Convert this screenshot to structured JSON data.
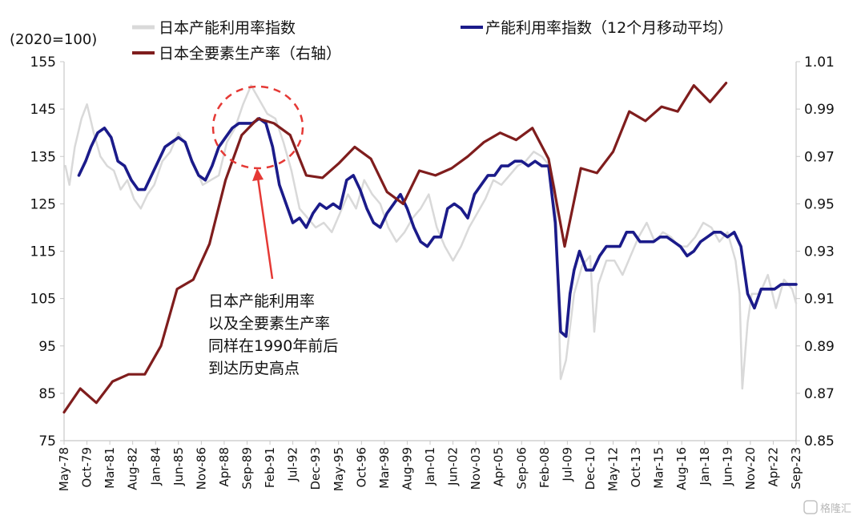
{
  "chart_data": {
    "type": "line",
    "unit_label": "(2020=100)",
    "y_left": {
      "ylim": [
        75,
        155
      ],
      "ticks": [
        75,
        85,
        95,
        105,
        115,
        125,
        135,
        145,
        155
      ]
    },
    "y_right": {
      "ylim": [
        0.85,
        1.01
      ],
      "ticks": [
        "0.85",
        "0.87",
        "0.89",
        "0.91",
        "0.93",
        "0.95",
        "0.97",
        "0.99",
        "1.01"
      ]
    },
    "x_axis": {
      "start": "1978-05",
      "end": "2023-09",
      "tick_labels": [
        "May-78",
        "Oct-79",
        "Mar-81",
        "Aug-82",
        "Jan-84",
        "Jun-85",
        "Nov-86",
        "Apr-88",
        "Sep-89",
        "Feb-91",
        "Jul-92",
        "Dec-93",
        "May-95",
        "Oct-96",
        "Mar-98",
        "Aug-99",
        "Jan-01",
        "Jun-02",
        "Nov-03",
        "Apr-05",
        "Sep-06",
        "Feb-08",
        "Jul-09",
        "Dec-10",
        "May-12",
        "Oct-13",
        "Mar-15",
        "Aug-16",
        "Jan-18",
        "Jun-19",
        "Nov-20",
        "Apr-22",
        "Sep-23"
      ]
    },
    "legend": [
      {
        "label": "日本产能利用率指数",
        "color": "#d9d9d9"
      },
      {
        "label": "产能利用率指数（12个月移动平均）",
        "color": "#1b1b8a"
      },
      {
        "label": "日本全要素生产率（右轴）",
        "color": "#7f1d1d"
      }
    ],
    "series": [
      {
        "name": "日本产能利用率指数",
        "axis": "left",
        "color": "#d9d9d9",
        "x": [
          "1978-06",
          "1978-09",
          "1979-01",
          "1979-06",
          "1979-10",
          "1980-03",
          "1980-08",
          "1981-01",
          "1981-06",
          "1981-11",
          "1982-04",
          "1982-09",
          "1983-02",
          "1983-07",
          "1983-12",
          "1984-06",
          "1984-12",
          "1985-06",
          "1985-12",
          "1986-06",
          "1986-12",
          "1987-06",
          "1987-12",
          "1988-06",
          "1988-12",
          "1989-06",
          "1989-12",
          "1990-06",
          "1990-12",
          "1991-06",
          "1991-12",
          "1992-06",
          "1992-12",
          "1993-06",
          "1993-12",
          "1994-06",
          "1994-12",
          "1995-06",
          "1995-12",
          "1996-06",
          "1996-12",
          "1997-06",
          "1997-12",
          "1998-06",
          "1998-12",
          "1999-06",
          "1999-12",
          "2000-06",
          "2000-12",
          "2001-06",
          "2001-12",
          "2002-06",
          "2002-12",
          "2003-06",
          "2003-12",
          "2004-06",
          "2004-12",
          "2005-06",
          "2005-12",
          "2006-06",
          "2006-12",
          "2007-06",
          "2007-12",
          "2008-06",
          "2008-10",
          "2009-02",
          "2009-06",
          "2009-12",
          "2010-06",
          "2010-12",
          "2011-03",
          "2011-06",
          "2011-12",
          "2012-06",
          "2012-12",
          "2013-06",
          "2013-12",
          "2014-06",
          "2014-12",
          "2015-06",
          "2015-12",
          "2016-06",
          "2016-12",
          "2017-06",
          "2017-12",
          "2018-06",
          "2018-12",
          "2019-06",
          "2019-12",
          "2020-03",
          "2020-05",
          "2020-09",
          "2020-12",
          "2021-06",
          "2021-12",
          "2022-06",
          "2022-12",
          "2023-06",
          "2023-09"
        ],
        "values": [
          133,
          129,
          137,
          143,
          146,
          140,
          135,
          133,
          132,
          128,
          130,
          126,
          124,
          127,
          129,
          134,
          136,
          140,
          137,
          133,
          129,
          130,
          131,
          138,
          141,
          146,
          150,
          147,
          144,
          143,
          138,
          132,
          124,
          122,
          120,
          121,
          119,
          123,
          127,
          124,
          130,
          127,
          125,
          120,
          117,
          119,
          122,
          124,
          127,
          120,
          116,
          113,
          116,
          120,
          123,
          126,
          130,
          129,
          131,
          133,
          134,
          136,
          135,
          133,
          128,
          88,
          92,
          106,
          112,
          114,
          98,
          108,
          113,
          113,
          110,
          114,
          118,
          121,
          117,
          119,
          118,
          116,
          116,
          118,
          121,
          120,
          117,
          119,
          113,
          106,
          86,
          100,
          106,
          106,
          110,
          103,
          109,
          107,
          104
        ]
      },
      {
        "name": "产能利用率指数（12个月移动平均）",
        "axis": "left",
        "color": "#1b1b8a",
        "x": [
          "1979-04",
          "1979-09",
          "1980-01",
          "1980-06",
          "1980-11",
          "1981-04",
          "1981-09",
          "1982-02",
          "1982-07",
          "1982-12",
          "1983-05",
          "1983-10",
          "1984-03",
          "1984-08",
          "1985-01",
          "1985-06",
          "1985-11",
          "1986-04",
          "1986-09",
          "1987-02",
          "1987-07",
          "1987-12",
          "1988-05",
          "1988-10",
          "1989-03",
          "1989-08",
          "1990-01",
          "1990-06",
          "1990-11",
          "1991-04",
          "1991-09",
          "1992-02",
          "1992-07",
          "1992-12",
          "1993-05",
          "1993-10",
          "1994-03",
          "1994-08",
          "1995-01",
          "1995-06",
          "1995-11",
          "1996-04",
          "1996-09",
          "1997-02",
          "1997-07",
          "1997-12",
          "1998-05",
          "1998-10",
          "1999-03",
          "1999-08",
          "2000-01",
          "2000-06",
          "2000-11",
          "2001-04",
          "2001-09",
          "2002-02",
          "2002-07",
          "2002-12",
          "2003-05",
          "2003-10",
          "2004-03",
          "2004-08",
          "2005-01",
          "2005-06",
          "2005-11",
          "2006-04",
          "2006-09",
          "2007-02",
          "2007-07",
          "2007-12",
          "2008-05",
          "2008-10",
          "2009-02",
          "2009-06",
          "2009-09",
          "2009-12",
          "2010-04",
          "2010-09",
          "2011-02",
          "2011-07",
          "2011-12",
          "2012-05",
          "2012-10",
          "2013-03",
          "2013-08",
          "2014-01",
          "2014-06",
          "2014-11",
          "2015-04",
          "2015-09",
          "2016-02",
          "2016-07",
          "2016-12",
          "2017-05",
          "2017-10",
          "2018-03",
          "2018-08",
          "2019-01",
          "2019-06",
          "2019-11",
          "2020-04",
          "2020-09",
          "2021-02",
          "2021-07",
          "2021-12",
          "2022-05",
          "2022-10",
          "2023-03",
          "2023-09"
        ],
        "values": [
          131,
          134,
          137,
          140,
          141,
          139,
          134,
          133,
          130,
          128,
          128,
          131,
          134,
          137,
          138,
          139,
          138,
          134,
          131,
          130,
          133,
          137,
          139,
          141,
          142,
          142,
          142,
          143,
          142,
          137,
          129,
          125,
          121,
          122,
          120,
          123,
          125,
          124,
          125,
          124,
          130,
          131,
          128,
          124,
          121,
          120,
          123,
          125,
          127,
          124,
          120,
          117,
          116,
          118,
          118,
          124,
          125,
          124,
          122,
          127,
          129,
          131,
          131,
          133,
          133,
          134,
          134,
          133,
          134,
          133,
          133,
          121,
          98,
          97,
          106,
          111,
          115,
          111,
          111,
          114,
          116,
          116,
          116,
          119,
          119,
          117,
          117,
          117,
          118,
          118,
          117,
          116,
          114,
          115,
          117,
          118,
          119,
          119,
          118,
          119,
          116,
          106,
          103,
          107,
          107,
          107,
          108,
          108,
          108
        ]
      },
      {
        "name": "日本全要素生产率（右轴）",
        "axis": "right",
        "color": "#7f1d1d",
        "x": [
          "1978-05",
          "1979-05",
          "1980-05",
          "1981-05",
          "1982-05",
          "1983-05",
          "1984-05",
          "1985-05",
          "1986-05",
          "1987-05",
          "1988-05",
          "1989-05",
          "1990-05",
          "1991-05",
          "1992-05",
          "1993-05",
          "1994-05",
          "1995-05",
          "1996-05",
          "1997-05",
          "1998-05",
          "1999-05",
          "2000-05",
          "2001-05",
          "2002-05",
          "2003-05",
          "2004-05",
          "2005-05",
          "2006-05",
          "2007-05",
          "2008-05",
          "2009-05",
          "2010-05",
          "2011-05",
          "2012-05",
          "2013-05",
          "2014-05",
          "2015-05",
          "2016-05",
          "2017-05",
          "2018-05",
          "2019-05"
        ],
        "values": [
          0.862,
          0.872,
          0.866,
          0.875,
          0.878,
          0.878,
          0.89,
          0.914,
          0.918,
          0.933,
          0.96,
          0.979,
          0.986,
          0.984,
          0.979,
          0.962,
          0.961,
          0.967,
          0.974,
          0.969,
          0.955,
          0.95,
          0.964,
          0.962,
          0.965,
          0.97,
          0.976,
          0.98,
          0.977,
          0.982,
          0.969,
          0.932,
          0.965,
          0.963,
          0.972,
          0.989,
          0.985,
          0.991,
          0.989,
          1.0,
          0.993,
          1.001
        ]
      }
    ],
    "annotation": {
      "lines": [
        "日本产能利用率",
        "以及全要素生产率",
        "同样在1990年前后",
        "到达历史高点"
      ]
    },
    "grid": false,
    "legend_position": "top"
  },
  "watermark": "格隆汇"
}
